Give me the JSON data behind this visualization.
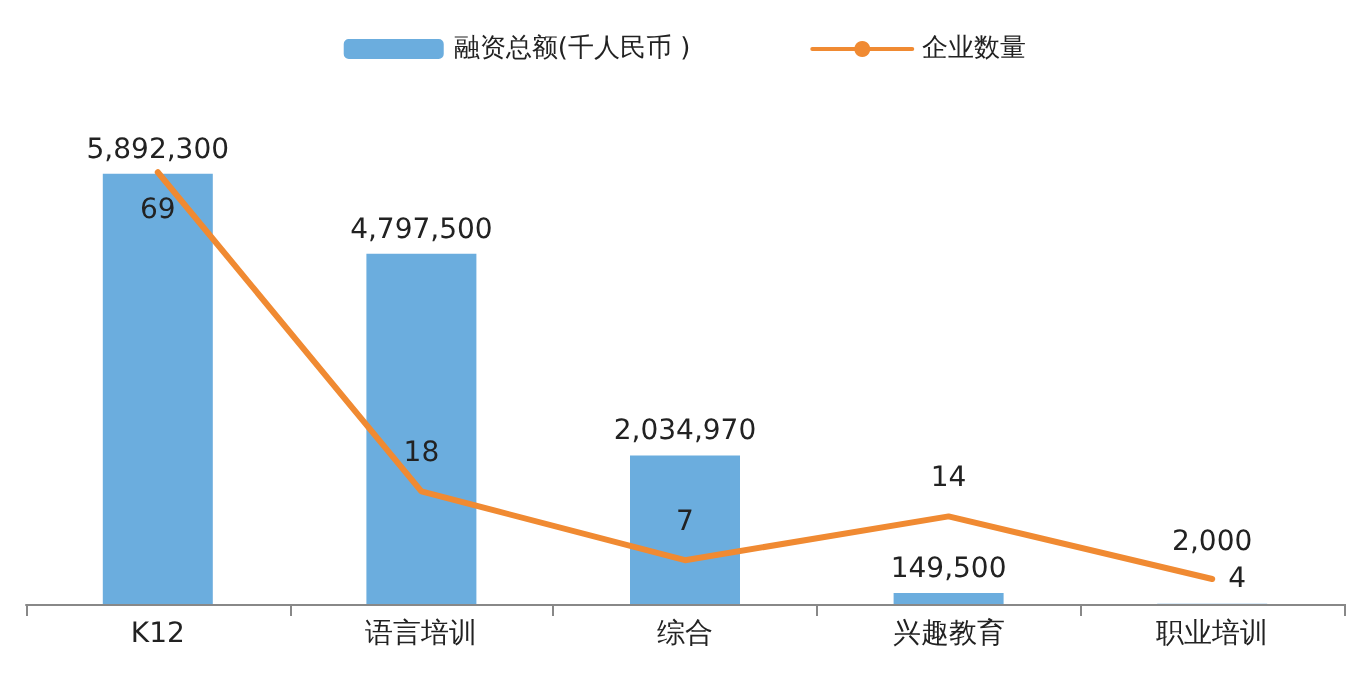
{
  "chart_data": {
    "type": "bar",
    "categories": [
      "K12",
      "语言培训",
      "综合",
      "兴趣教育",
      "职业培训"
    ],
    "series": [
      {
        "name": "融资总额(千人民币 )",
        "color": "#6badde",
        "values": [
          5892300,
          4797500,
          2034970,
          149500,
          2000
        ],
        "value_labels": [
          "5,892,300",
          "4,797,500",
          "2,034,970",
          "149,500",
          "2,000"
        ]
      },
      {
        "name": "企业数量",
        "type": "line",
        "axis": "y2",
        "color": "#f08a32",
        "values": [
          69,
          18,
          7,
          14,
          4
        ]
      }
    ],
    "data_labels": true,
    "legend": "top",
    "grid": false,
    "marker": "none",
    "line_style": "solid"
  }
}
